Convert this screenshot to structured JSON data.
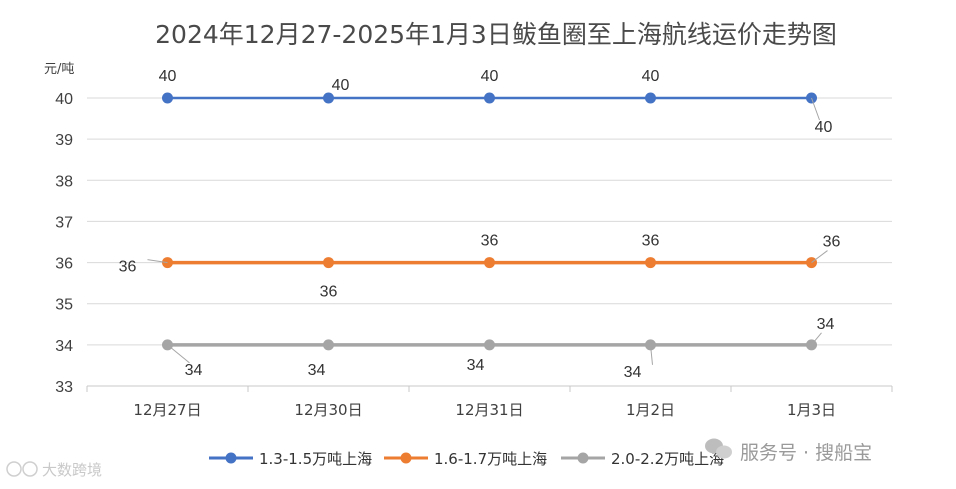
{
  "chart_data": {
    "type": "line",
    "title": "2024年12月27-2025年1月3日鲅鱼圈至上海航线运价走势图",
    "yunit": "元/吨",
    "categories": [
      "12月27日",
      "12月30日",
      "12月31日",
      "1月2日",
      "1月3日"
    ],
    "ylim": [
      33,
      40
    ],
    "yticks": [
      33,
      34,
      35,
      36,
      37,
      38,
      39,
      40
    ],
    "grid": true,
    "legend_position": "bottom",
    "series": [
      {
        "name": "1.3-1.5万吨上海",
        "color": "#4472C4",
        "values": [
          40,
          40,
          40,
          40,
          40
        ]
      },
      {
        "name": "1.6-1.7万吨上海",
        "color": "#ED7D31",
        "values": [
          36,
          36,
          36,
          36,
          36
        ]
      },
      {
        "name": "2.0-2.2万吨上海",
        "color": "#A5A5A5",
        "values": [
          34,
          34,
          34,
          34,
          34
        ]
      }
    ]
  },
  "watermark": {
    "text": "服务号 · 搜船宝",
    "brand": "大数跨境"
  }
}
